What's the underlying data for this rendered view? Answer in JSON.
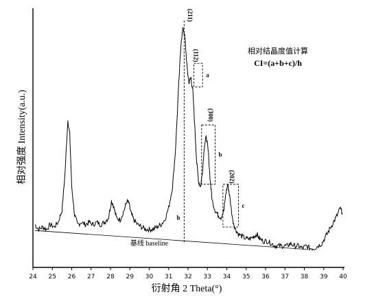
{
  "chart_data": {
    "type": "line",
    "xlabel": "衍射角 2 Theta(°)",
    "ylabel": "相对强度 Intensity(a.u.)",
    "xlim": [
      24,
      40
    ],
    "x_ticks": [
      "24",
      "25",
      "26",
      "27",
      "28",
      "29",
      "30",
      "31",
      "32",
      "33",
      "34",
      "35",
      "36",
      "37",
      "38",
      "39",
      "40"
    ],
    "grid": false,
    "formula_title": "相对结晶度值计算",
    "formula": "CI=(a+b+c)/h",
    "peak_labels": [
      {
        "text": "(211)",
        "x": 31.9
      },
      {
        "text": "(112)",
        "x": 32.2
      },
      {
        "text": "(300)",
        "x": 32.95
      },
      {
        "text": "(202)",
        "x": 34.05
      }
    ],
    "box_labels": [
      {
        "text": "a",
        "x0": 32.3,
        "x1": 32.75,
        "y0": 0.72,
        "y1": 0.82
      },
      {
        "text": "b",
        "x0": 32.7,
        "x1": 33.4,
        "y0": 0.31,
        "y1": 0.56
      },
      {
        "text": "c",
        "x0": 33.8,
        "x1": 34.6,
        "y0": 0.13,
        "y1": 0.31
      }
    ],
    "h_label": "h",
    "h_line_x": 31.8,
    "baseline": {
      "label": "基线 baseline",
      "x0": 24.1,
      "y0": 0.115,
      "x1": 38.2,
      "y1": 0.035
    },
    "series": [
      {
        "x": [
          24.1,
          24.3,
          24.5,
          24.7,
          24.9,
          25.1,
          25.3,
          25.5,
          25.65,
          25.8,
          25.9,
          26.0,
          26.15,
          26.3,
          26.5,
          26.7,
          26.9,
          27.1,
          27.3,
          27.5,
          27.7,
          27.9,
          28.05,
          28.15,
          28.3,
          28.5,
          28.7,
          28.85,
          28.95,
          29.05,
          29.2,
          29.4,
          29.6,
          29.8,
          30.0,
          30.2,
          30.4,
          30.6,
          30.8,
          31.0,
          31.2,
          31.35,
          31.5,
          31.65,
          31.75,
          31.85,
          31.95,
          32.05,
          32.15,
          32.25,
          32.35,
          32.45,
          32.55,
          32.65,
          32.75,
          32.85,
          32.95,
          33.05,
          33.15,
          33.25,
          33.4,
          33.55,
          33.7,
          33.85,
          33.95,
          34.05,
          34.15,
          34.3,
          34.45,
          34.6,
          34.8,
          35.0,
          35.2,
          35.4,
          35.55,
          35.7,
          35.9,
          36.1,
          36.3,
          36.5,
          36.7,
          36.9,
          37.1,
          37.3,
          37.5,
          37.7,
          37.9,
          38.1,
          38.3,
          38.5,
          38.7,
          38.9,
          39.1,
          39.3,
          39.5,
          39.7,
          39.85,
          39.95
        ],
        "y": [
          0.14,
          0.12,
          0.13,
          0.12,
          0.14,
          0.13,
          0.15,
          0.2,
          0.35,
          0.58,
          0.52,
          0.3,
          0.18,
          0.14,
          0.15,
          0.14,
          0.15,
          0.14,
          0.15,
          0.14,
          0.15,
          0.17,
          0.24,
          0.22,
          0.17,
          0.16,
          0.2,
          0.24,
          0.23,
          0.19,
          0.16,
          0.14,
          0.13,
          0.12,
          0.12,
          0.12,
          0.13,
          0.14,
          0.16,
          0.21,
          0.3,
          0.45,
          0.7,
          0.92,
          0.97,
          0.92,
          0.8,
          0.74,
          0.76,
          0.7,
          0.55,
          0.4,
          0.32,
          0.3,
          0.37,
          0.48,
          0.51,
          0.44,
          0.32,
          0.24,
          0.2,
          0.18,
          0.17,
          0.2,
          0.27,
          0.31,
          0.26,
          0.16,
          0.12,
          0.1,
          0.09,
          0.08,
          0.08,
          0.09,
          0.1,
          0.08,
          0.07,
          0.07,
          0.06,
          0.05,
          0.05,
          0.05,
          0.05,
          0.06,
          0.05,
          0.05,
          0.04,
          0.05,
          0.04,
          0.04,
          0.05,
          0.06,
          0.09,
          0.12,
          0.15,
          0.18,
          0.21,
          0.19
        ]
      }
    ]
  }
}
